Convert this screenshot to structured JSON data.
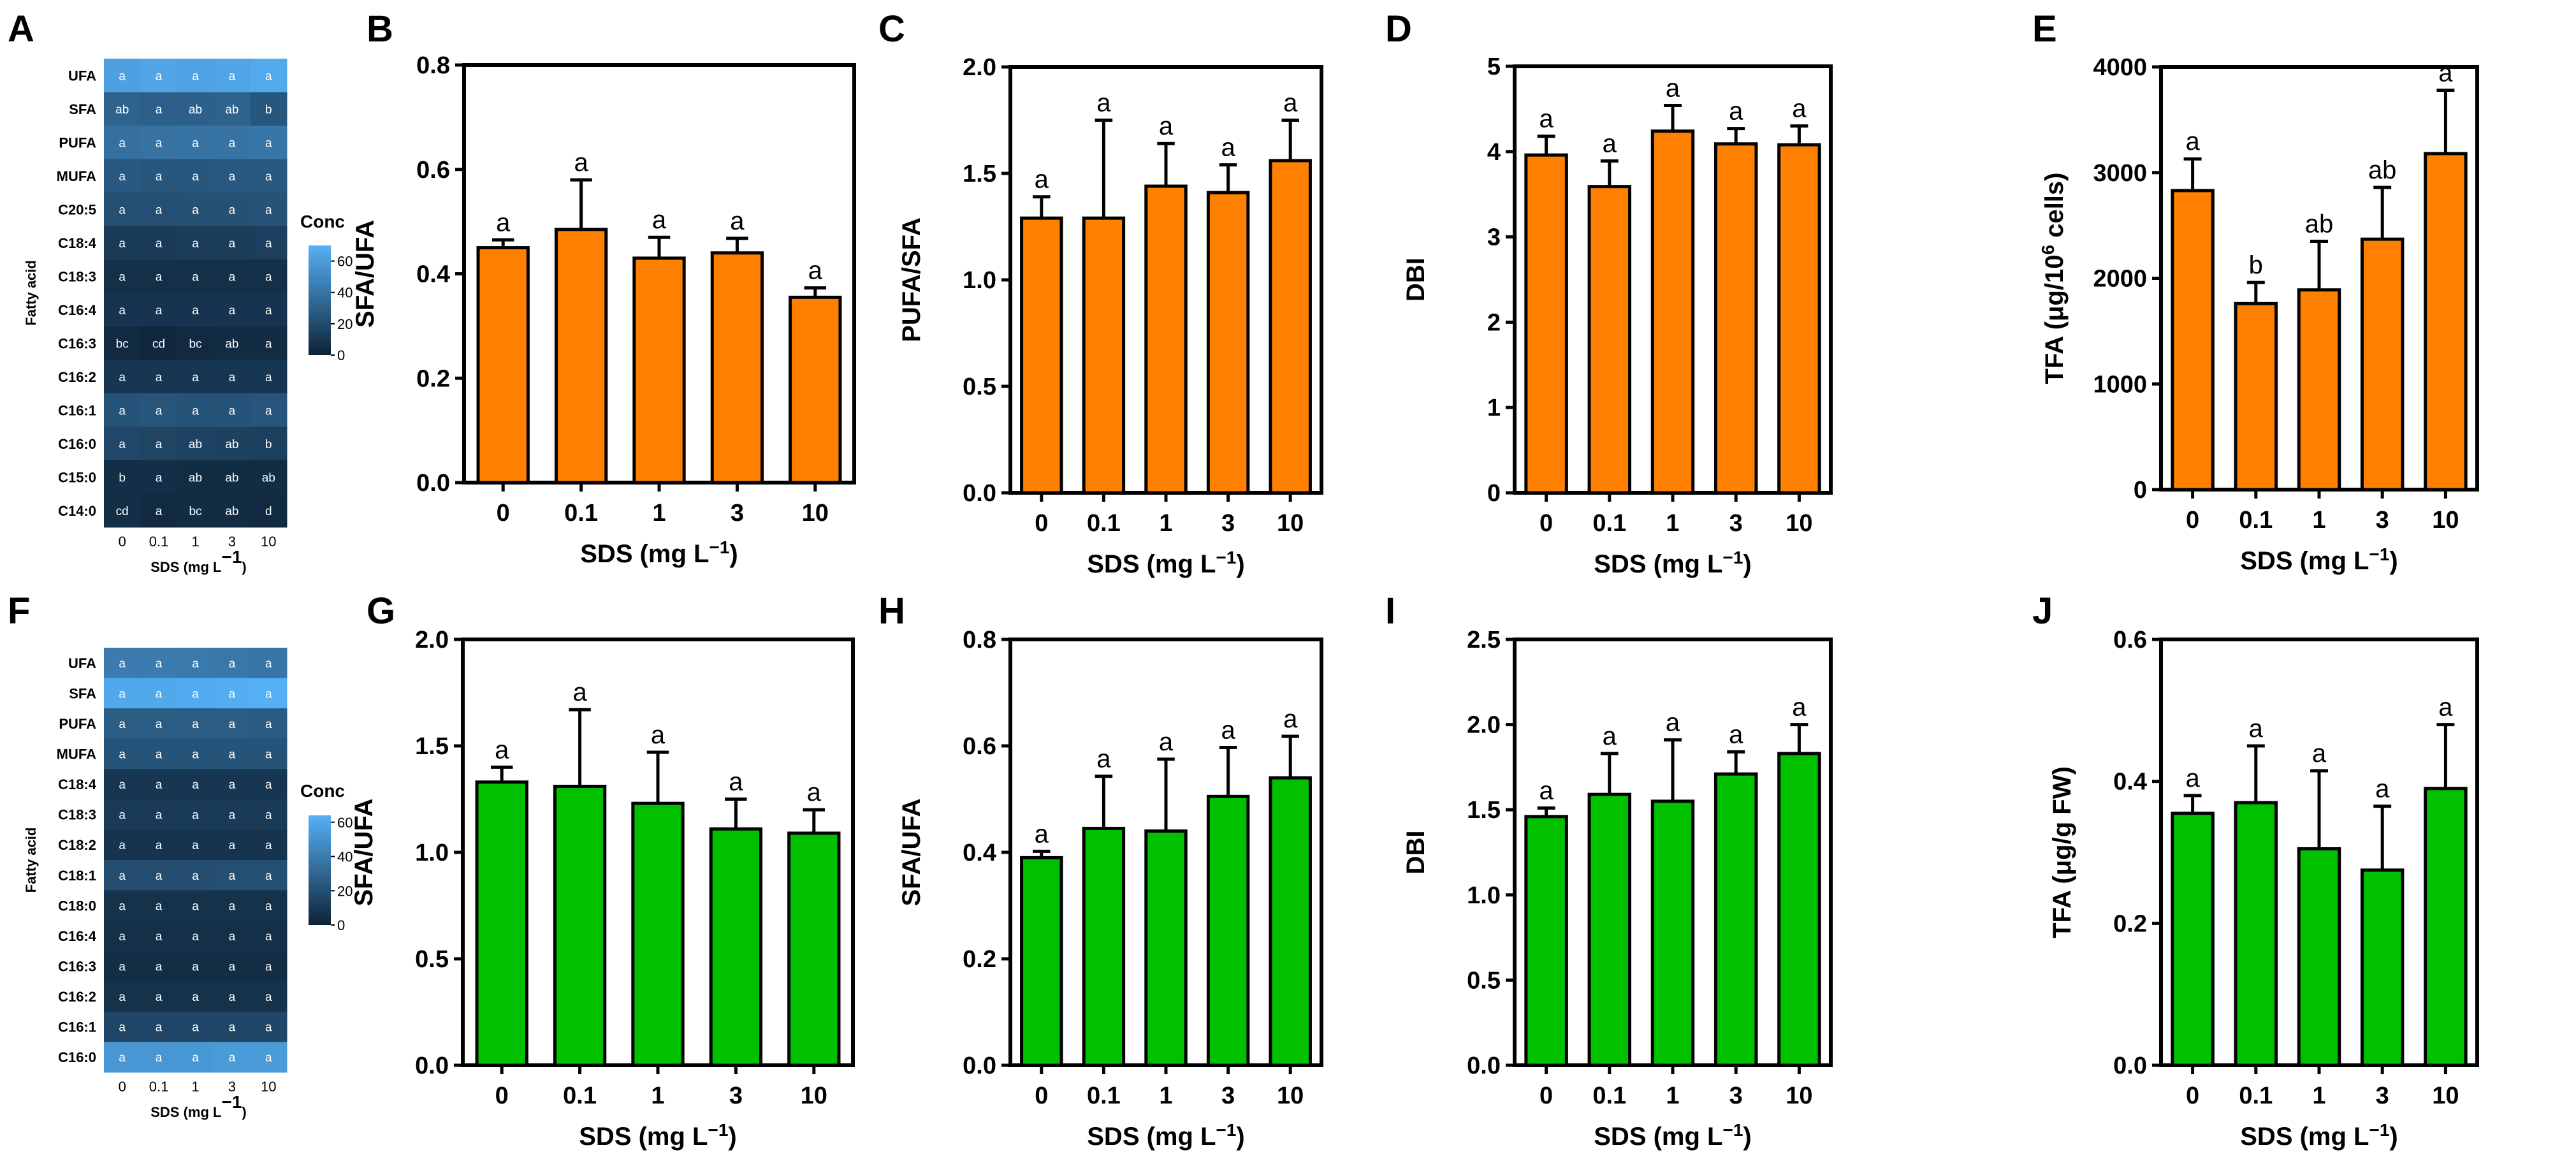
{
  "colors": {
    "orange": "#ff7f00",
    "green": "#00c000",
    "heat_low": "#0d2236",
    "heat_high": "#56b1f7"
  },
  "chart_data": [
    {
      "panel": "A",
      "type": "heatmap",
      "ylabel": "Fatty acid",
      "xlabel": "SDS (mg L",
      "xlabel_sup": "−1",
      "x_suffix": ")",
      "colorbar": {
        "title": "Conc",
        "ticks": [
          0,
          20,
          40,
          60
        ],
        "range": [
          0,
          70
        ]
      },
      "columns": [
        "0",
        "0.1",
        "1",
        "3",
        "10"
      ],
      "rows": [
        "UFA",
        "SFA",
        "PUFA",
        "MUFA",
        "C20:5",
        "C18:4",
        "C18:3",
        "C16:4",
        "C16:3",
        "C16:2",
        "C16:1",
        "C16:0",
        "C15:0",
        "C14:0"
      ],
      "values": [
        [
          62,
          64,
          63,
          64,
          66
        ],
        [
          32,
          30,
          31,
          32,
          26
        ],
        [
          38,
          39,
          40,
          40,
          41
        ],
        [
          27,
          26,
          26,
          27,
          27
        ],
        [
          22,
          22,
          23,
          23,
          24
        ],
        [
          12,
          12,
          13,
          13,
          14
        ],
        [
          7,
          7,
          7,
          7,
          7
        ],
        [
          9,
          9,
          9,
          9,
          9
        ],
        [
          4,
          3,
          4,
          5,
          5
        ],
        [
          10,
          10,
          10,
          10,
          10
        ],
        [
          24,
          25,
          24,
          24,
          25
        ],
        [
          18,
          17,
          16,
          15,
          14
        ],
        [
          6,
          6,
          5,
          5,
          5
        ],
        [
          6,
          4,
          5,
          5,
          4
        ]
      ],
      "labels": [
        [
          "a",
          "a",
          "a",
          "a",
          "a"
        ],
        [
          "ab",
          "a",
          "ab",
          "ab",
          "b"
        ],
        [
          "a",
          "a",
          "a",
          "a",
          "a"
        ],
        [
          "a",
          "a",
          "a",
          "a",
          "a"
        ],
        [
          "a",
          "a",
          "a",
          "a",
          "a"
        ],
        [
          "a",
          "a",
          "a",
          "a",
          "a"
        ],
        [
          "a",
          "a",
          "a",
          "a",
          "a"
        ],
        [
          "a",
          "a",
          "a",
          "a",
          "a"
        ],
        [
          "bc",
          "cd",
          "bc",
          "ab",
          "a"
        ],
        [
          "a",
          "a",
          "a",
          "a",
          "a"
        ],
        [
          "a",
          "a",
          "a",
          "a",
          "a"
        ],
        [
          "a",
          "a",
          "ab",
          "ab",
          "b"
        ],
        [
          "b",
          "a",
          "ab",
          "ab",
          "ab"
        ],
        [
          "cd",
          "a",
          "bc",
          "ab",
          "d"
        ]
      ]
    },
    {
      "panel": "B",
      "type": "bar",
      "color": "orange",
      "categories": [
        "0",
        "0.1",
        "1",
        "3",
        "10"
      ],
      "values": [
        0.45,
        0.485,
        0.43,
        0.44,
        0.355
      ],
      "errors": [
        0.015,
        0.095,
        0.04,
        0.028,
        0.018
      ],
      "letters": [
        "a",
        "a",
        "a",
        "a",
        "a"
      ],
      "ylabel": "SFA/UFA",
      "xlabel": "SDS (mg L",
      "xlabel_sup": "−1",
      "x_suffix": ")",
      "ylim": [
        0,
        0.8
      ],
      "yticks": [
        "0.0",
        "0.2",
        "0.4",
        "0.6",
        "0.8"
      ],
      "ytick_values": [
        0,
        0.2,
        0.4,
        0.6,
        0.8
      ]
    },
    {
      "panel": "C",
      "type": "bar",
      "color": "orange",
      "categories": [
        "0",
        "0.1",
        "1",
        "3",
        "10"
      ],
      "values": [
        1.29,
        1.29,
        1.44,
        1.41,
        1.56
      ],
      "errors": [
        0.1,
        0.46,
        0.2,
        0.13,
        0.19
      ],
      "letters": [
        "a",
        "a",
        "a",
        "a",
        "a"
      ],
      "ylabel": "PUFA/SFA",
      "xlabel": "SDS (mg L",
      "xlabel_sup": "−1",
      "x_suffix": ")",
      "ylim": [
        0,
        2.0
      ],
      "yticks": [
        "0.0",
        "0.5",
        "1.0",
        "1.5",
        "2.0"
      ],
      "ytick_values": [
        0,
        0.5,
        1.0,
        1.5,
        2.0
      ]
    },
    {
      "panel": "D",
      "type": "bar",
      "color": "orange",
      "categories": [
        "0",
        "0.1",
        "1",
        "3",
        "10"
      ],
      "values": [
        3.96,
        3.59,
        4.24,
        4.09,
        4.08
      ],
      "errors": [
        0.22,
        0.3,
        0.3,
        0.18,
        0.22
      ],
      "letters": [
        "a",
        "a",
        "a",
        "a",
        "a"
      ],
      "ylabel": "DBI",
      "xlabel": "SDS (mg L",
      "xlabel_sup": "−1",
      "x_suffix": ")",
      "ylim": [
        0,
        5
      ],
      "yticks": [
        "0",
        "1",
        "2",
        "3",
        "4",
        "5"
      ],
      "ytick_values": [
        0,
        1,
        2,
        3,
        4,
        5
      ]
    },
    {
      "panel": "E",
      "type": "bar",
      "color": "orange",
      "categories": [
        "0",
        "0.1",
        "1",
        "3",
        "10"
      ],
      "values": [
        2830,
        1760,
        1890,
        2370,
        3180
      ],
      "errors": [
        300,
        200,
        460,
        490,
        600
      ],
      "letters": [
        "a",
        "b",
        "ab",
        "ab",
        "a"
      ],
      "ylabel": "TFA (μg/10",
      "ylabel_sup": "6",
      "ylabel_suffix": " cells)",
      "xlabel": "SDS (mg L",
      "xlabel_sup": "−1",
      "x_suffix": ")",
      "ylim": [
        0,
        4000
      ],
      "yticks": [
        "0",
        "1000",
        "2000",
        "3000",
        "4000"
      ],
      "ytick_values": [
        0,
        1000,
        2000,
        3000,
        4000
      ]
    },
    {
      "panel": "F",
      "type": "heatmap",
      "ylabel": "Fatty acid",
      "xlabel": "SDS (mg L",
      "xlabel_sup": "−1",
      "x_suffix": ")",
      "colorbar": {
        "title": "Conc",
        "ticks": [
          0,
          20,
          40,
          60
        ],
        "range": [
          0,
          64
        ]
      },
      "columns": [
        "0",
        "0.1",
        "1",
        "3",
        "10"
      ],
      "rows": [
        "UFA",
        "SFA",
        "PUFA",
        "MUFA",
        "C18:4",
        "C18:3",
        "C18:2",
        "C18:1",
        "C18:0",
        "C16:4",
        "C16:3",
        "C16:2",
        "C16:1",
        "C16:0"
      ],
      "values": [
        [
          40,
          40,
          39,
          38,
          37
        ],
        [
          60,
          60,
          61,
          62,
          63
        ],
        [
          26,
          26,
          26,
          26,
          25
        ],
        [
          22,
          22,
          22,
          22,
          22
        ],
        [
          9,
          9,
          9,
          9,
          9
        ],
        [
          11,
          11,
          11,
          11,
          11
        ],
        [
          8,
          8,
          8,
          8,
          8
        ],
        [
          19,
          19,
          19,
          20,
          20
        ],
        [
          7,
          7,
          7,
          7,
          7
        ],
        [
          6,
          6,
          6,
          6,
          6
        ],
        [
          5,
          5,
          5,
          5,
          5
        ],
        [
          7,
          7,
          7,
          7,
          7
        ],
        [
          16,
          16,
          16,
          16,
          16
        ],
        [
          52,
          52,
          53,
          54,
          54
        ]
      ],
      "labels": [
        [
          "a",
          "a",
          "a",
          "a",
          "a"
        ],
        [
          "a",
          "a",
          "a",
          "a",
          "a"
        ],
        [
          "a",
          "a",
          "a",
          "a",
          "a"
        ],
        [
          "a",
          "a",
          "a",
          "a",
          "a"
        ],
        [
          "a",
          "a",
          "a",
          "a",
          "a"
        ],
        [
          "a",
          "a",
          "a",
          "a",
          "a"
        ],
        [
          "a",
          "a",
          "a",
          "a",
          "a"
        ],
        [
          "a",
          "a",
          "a",
          "a",
          "a"
        ],
        [
          "a",
          "a",
          "a",
          "a",
          "a"
        ],
        [
          "a",
          "a",
          "a",
          "a",
          "a"
        ],
        [
          "a",
          "a",
          "a",
          "a",
          "a"
        ],
        [
          "a",
          "a",
          "a",
          "a",
          "a"
        ],
        [
          "a",
          "a",
          "a",
          "a",
          "a"
        ],
        [
          "a",
          "a",
          "a",
          "a",
          "a"
        ]
      ]
    },
    {
      "panel": "G",
      "type": "bar",
      "color": "green",
      "categories": [
        "0",
        "0.1",
        "1",
        "3",
        "10"
      ],
      "values": [
        1.33,
        1.31,
        1.23,
        1.11,
        1.09
      ],
      "errors": [
        0.07,
        0.36,
        0.24,
        0.14,
        0.11
      ],
      "letters": [
        "a",
        "a",
        "a",
        "a",
        "a"
      ],
      "ylabel": "SFA/UFA",
      "xlabel": "SDS (mg L",
      "xlabel_sup": "−1",
      "x_suffix": ")",
      "ylim": [
        0,
        2.0
      ],
      "yticks": [
        "0.0",
        "0.5",
        "1.0",
        "1.5",
        "2.0"
      ],
      "ytick_values": [
        0,
        0.5,
        1.0,
        1.5,
        2.0
      ]
    },
    {
      "panel": "H",
      "type": "bar",
      "color": "green",
      "categories": [
        "0",
        "0.1",
        "1",
        "3",
        "10"
      ],
      "values": [
        0.39,
        0.445,
        0.44,
        0.505,
        0.54
      ],
      "errors": [
        0.012,
        0.098,
        0.135,
        0.092,
        0.078
      ],
      "letters": [
        "a",
        "a",
        "a",
        "a",
        "a"
      ],
      "ylabel": "SFA/UFA",
      "xlabel": "SDS (mg L",
      "xlabel_sup": "−1",
      "x_suffix": ")",
      "ylim": [
        0,
        0.8
      ],
      "yticks": [
        "0.0",
        "0.2",
        "0.4",
        "0.6",
        "0.8"
      ],
      "ytick_values": [
        0,
        0.2,
        0.4,
        0.6,
        0.8
      ]
    },
    {
      "panel": "I",
      "type": "bar",
      "color": "green",
      "categories": [
        "0",
        "0.1",
        "1",
        "3",
        "10"
      ],
      "values": [
        1.46,
        1.59,
        1.55,
        1.71,
        1.83
      ],
      "errors": [
        0.05,
        0.24,
        0.36,
        0.13,
        0.17
      ],
      "letters": [
        "a",
        "a",
        "a",
        "a",
        "a"
      ],
      "ylabel": "DBI",
      "xlabel": "SDS (mg L",
      "xlabel_sup": "−1",
      "x_suffix": ")",
      "ylim": [
        0,
        2.5
      ],
      "yticks": [
        "0.0",
        "0.5",
        "1.0",
        "1.5",
        "2.0",
        "2.5"
      ],
      "ytick_values": [
        0,
        0.5,
        1.0,
        1.5,
        2.0,
        2.5
      ]
    },
    {
      "panel": "J",
      "type": "bar",
      "color": "green",
      "categories": [
        "0",
        "0.1",
        "1",
        "3",
        "10"
      ],
      "values": [
        0.355,
        0.37,
        0.305,
        0.275,
        0.39
      ],
      "errors": [
        0.025,
        0.08,
        0.11,
        0.09,
        0.09
      ],
      "letters": [
        "a",
        "a",
        "a",
        "a",
        "a"
      ],
      "ylabel": "TFA (μg/g FW)",
      "xlabel": "SDS (mg L",
      "xlabel_sup": "−1",
      "x_suffix": ")",
      "ylim": [
        0,
        0.6
      ],
      "yticks": [
        "0.0",
        "0.2",
        "0.4",
        "0.6"
      ],
      "ytick_values": [
        0,
        0.2,
        0.4,
        0.6
      ]
    }
  ]
}
